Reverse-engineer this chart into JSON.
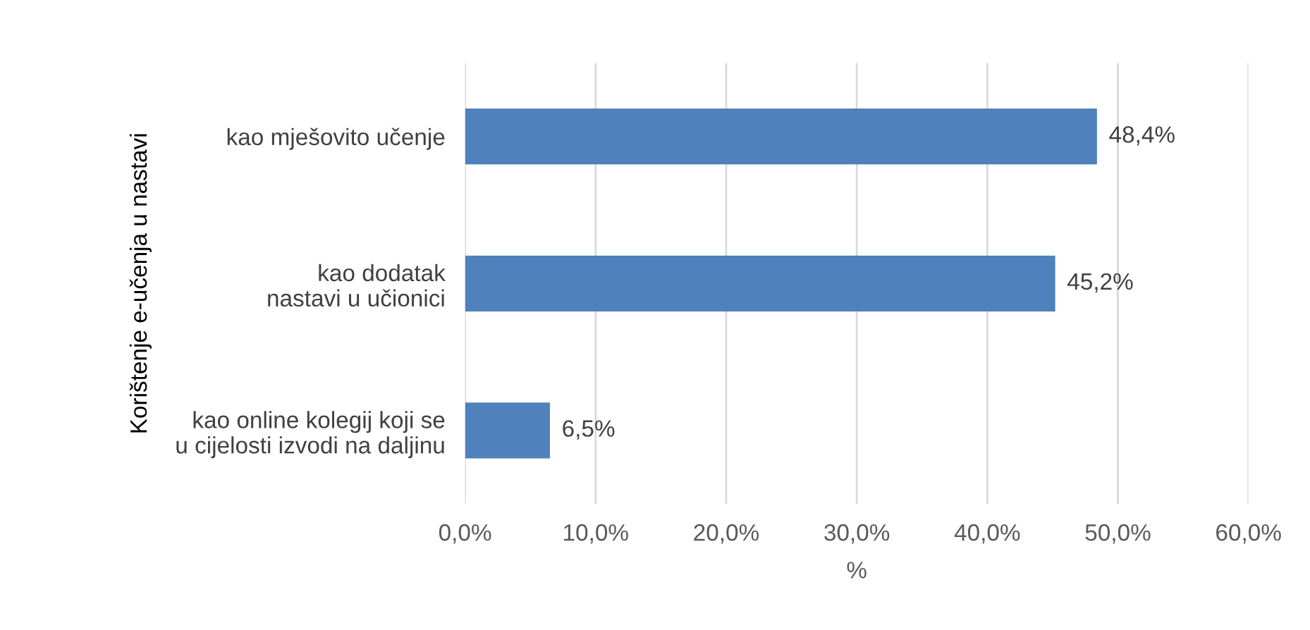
{
  "chart_data": {
    "type": "bar",
    "orientation": "horizontal",
    "categories": [
      "kao mješovito učenje",
      "kao dodatak\nnastavi u učionici",
      "kao online kolegij koji se\nu cijelosti izvodi na daljinu"
    ],
    "values": [
      48.4,
      45.2,
      6.5
    ],
    "value_labels": [
      "48,4%",
      "45,2%",
      "6,5%"
    ],
    "color": "#4f81bd",
    "xlim": [
      0,
      60
    ],
    "xticks": [
      {
        "value": 0,
        "label": "0,0%"
      },
      {
        "value": 10,
        "label": "10,0%"
      },
      {
        "value": 20,
        "label": "20,0%"
      },
      {
        "value": 30,
        "label": "30,0%"
      },
      {
        "value": 40,
        "label": "40,0%"
      },
      {
        "value": 50,
        "label": "50,0%"
      },
      {
        "value": 60,
        "label": "60,0%"
      }
    ],
    "xlabel": "%",
    "ylabel": "Korištenje e-učenja u nastavi",
    "grid": "x",
    "legend": false
  }
}
